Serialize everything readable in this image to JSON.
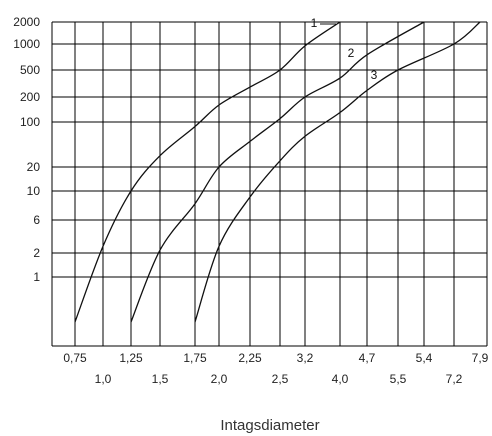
{
  "chart_data": {
    "type": "line",
    "title": "",
    "xlabel": "Intagsdiameter",
    "ylabel": "",
    "grid": true,
    "y_scale": "log",
    "yticks": [
      1,
      2,
      6,
      10,
      20,
      100,
      200,
      500,
      1000,
      2000
    ],
    "ytick_labels": [
      "1",
      "2",
      "6",
      "10",
      "20",
      "100",
      "200",
      "500",
      "1000",
      "2000"
    ],
    "x_labels_upper": [
      "0,75",
      "1,25",
      "1,75",
      "2,25",
      "3,2",
      "4,7",
      "5,4",
      "7,9"
    ],
    "x_labels_lower": [
      "1,0",
      "1,5",
      "2,0",
      "2,5",
      "4,0",
      "5,5",
      "7,2"
    ],
    "series": [
      {
        "name": "1",
        "points": [
          {
            "x": "0,75",
            "y": 0.3
          },
          {
            "x": "1,0",
            "y": 2.5
          },
          {
            "x": "1,25",
            "y": 10
          },
          {
            "x": "1,5",
            "y": 30
          },
          {
            "x": "1,75",
            "y": 85
          },
          {
            "x": "2,0",
            "y": 160
          },
          {
            "x": "2,25",
            "y": 280
          },
          {
            "x": "2,5",
            "y": 500
          },
          {
            "x": "3,2",
            "y": 950
          },
          {
            "x": "4,0",
            "y": 2000
          }
        ]
      },
      {
        "name": "2",
        "points": [
          {
            "x": "1,25",
            "y": 0.3
          },
          {
            "x": "1,5",
            "y": 2.2
          },
          {
            "x": "1,75",
            "y": 8
          },
          {
            "x": "2,0",
            "y": 20
          },
          {
            "x": "2,25",
            "y": 50
          },
          {
            "x": "2,5",
            "y": 110
          },
          {
            "x": "3,2",
            "y": 200
          },
          {
            "x": "4,0",
            "y": 380
          },
          {
            "x": "4,7",
            "y": 750
          },
          {
            "x": "5,4",
            "y": 2000
          }
        ]
      },
      {
        "name": "3",
        "points": [
          {
            "x": "1,75",
            "y": 0.3
          },
          {
            "x": "2,0",
            "y": 2.5
          },
          {
            "x": "2,25",
            "y": 9
          },
          {
            "x": "2,5",
            "y": 25
          },
          {
            "x": "3,2",
            "y": 60
          },
          {
            "x": "4,0",
            "y": 130
          },
          {
            "x": "4,7",
            "y": 250
          },
          {
            "x": "5,5",
            "y": 500
          },
          {
            "x": "7,2",
            "y": 1000
          },
          {
            "x": "7,9",
            "y": 2000
          }
        ]
      }
    ]
  }
}
